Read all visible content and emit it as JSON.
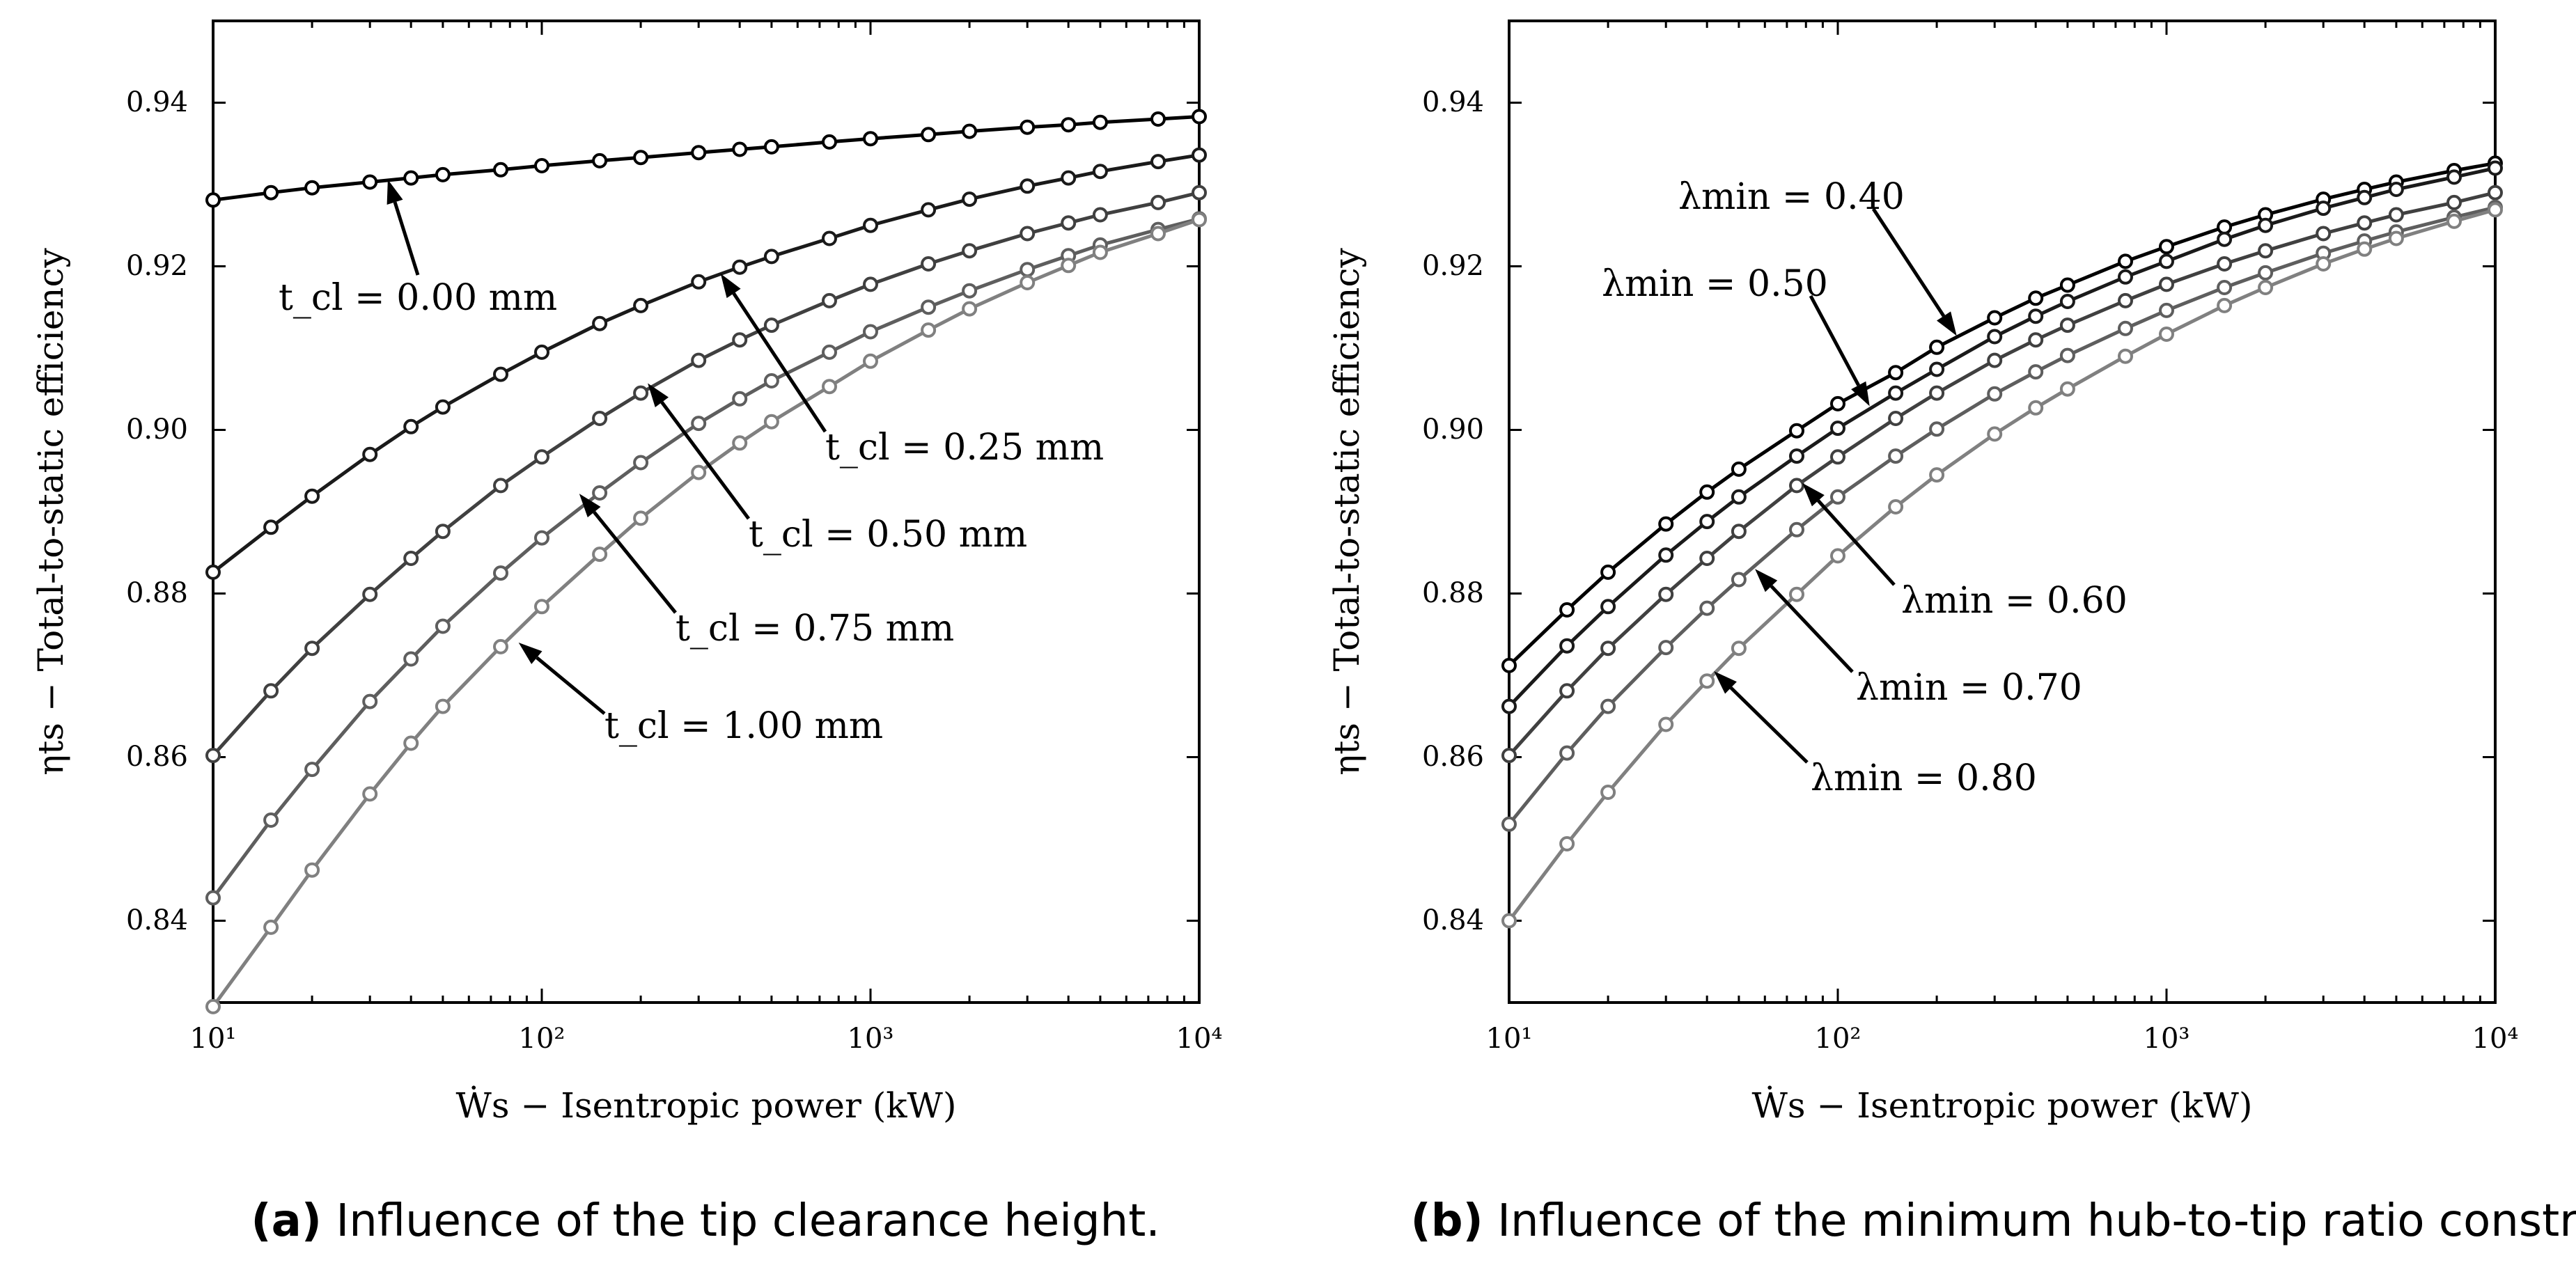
{
  "chart_data": [
    {
      "type": "line",
      "panel_label": "a",
      "caption": "Influence of the tip clearance height.",
      "xlabel": "Ẇs − Isentropic power (kW)",
      "ylabel": "ηts − Total-to-static efficiency",
      "xscale": "log",
      "xlim": [
        10,
        10000
      ],
      "ylim": [
        0.83,
        0.95
      ],
      "yticks": [
        0.84,
        0.86,
        0.88,
        0.9,
        0.92,
        0.94
      ],
      "ytick_labels": [
        "0.84",
        "0.86",
        "0.88",
        "0.90",
        "0.92",
        "0.94"
      ],
      "xtick_labels": [
        "10¹",
        "10²",
        "10³",
        "10⁴"
      ],
      "x": [
        10,
        15,
        20,
        30,
        40,
        50,
        75,
        100,
        150,
        200,
        300,
        400,
        500,
        750,
        1000,
        1500,
        2000,
        3000,
        4000,
        5000,
        7500,
        10000
      ],
      "series": [
        {
          "name": "t_cl = 0.00 mm",
          "color": "#000000",
          "values": [
            0.9281,
            0.929,
            0.9296,
            0.9303,
            0.9308,
            0.9312,
            0.9318,
            0.9323,
            0.9329,
            0.9333,
            0.9339,
            0.9343,
            0.9346,
            0.9352,
            0.9356,
            0.9361,
            0.9365,
            0.937,
            0.9373,
            0.9376,
            0.938,
            0.9383
          ]
        },
        {
          "name": "t_cl = 0.25 mm",
          "color": "#1a1a1a",
          "values": [
            0.8826,
            0.8881,
            0.8919,
            0.897,
            0.9004,
            0.9028,
            0.9068,
            0.9095,
            0.913,
            0.9152,
            0.9181,
            0.9199,
            0.9212,
            0.9234,
            0.925,
            0.9269,
            0.9282,
            0.9298,
            0.9308,
            0.9316,
            0.9328,
            0.9336
          ]
        },
        {
          "name": "t_cl = 0.50 mm",
          "color": "#404040",
          "values": [
            0.8602,
            0.8681,
            0.8733,
            0.8799,
            0.8843,
            0.8876,
            0.8932,
            0.8967,
            0.9014,
            0.9045,
            0.9085,
            0.911,
            0.9128,
            0.9158,
            0.9178,
            0.9203,
            0.9219,
            0.924,
            0.9253,
            0.9263,
            0.9278,
            0.929
          ]
        },
        {
          "name": "t_cl = 0.75 mm",
          "color": "#5e5e5e",
          "values": [
            0.8428,
            0.8523,
            0.8585,
            0.8668,
            0.872,
            0.876,
            0.8825,
            0.8868,
            0.8923,
            0.896,
            0.9008,
            0.9038,
            0.906,
            0.9095,
            0.912,
            0.915,
            0.917,
            0.9196,
            0.9213,
            0.9226,
            0.9245,
            0.9258
          ]
        },
        {
          "name": "t_cl = 1.00 mm",
          "color": "#808080",
          "values": [
            0.8295,
            0.8392,
            0.8462,
            0.8555,
            0.8617,
            0.8662,
            0.8735,
            0.8784,
            0.8848,
            0.8892,
            0.8948,
            0.8984,
            0.901,
            0.9053,
            0.9084,
            0.9122,
            0.9148,
            0.918,
            0.9201,
            0.9217,
            0.924,
            0.9257
          ]
        }
      ],
      "annotations": [
        {
          "text": "t_cl = 0.00 mm",
          "arrow_to": [
            34,
            0.9306
          ]
        },
        {
          "text": "t_cl = 0.25 mm",
          "arrow_to": [
            350,
            0.9191
          ]
        },
        {
          "text": "t_cl = 0.50 mm",
          "arrow_to": [
            210,
            0.9057
          ]
        },
        {
          "text": "t_cl = 0.75 mm",
          "arrow_to": [
            130,
            0.8922
          ]
        },
        {
          "text": "t_cl = 1.00 mm",
          "arrow_to": [
            85,
            0.874
          ]
        }
      ]
    },
    {
      "type": "line",
      "panel_label": "b",
      "caption": "Influence of the minimum hub-to-tip ratio constraint.",
      "xlabel": "Ẇs − Isentropic power (kW)",
      "ylabel": "ηts − Total-to-static efficiency",
      "xscale": "log",
      "xlim": [
        10,
        10000
      ],
      "ylim": [
        0.83,
        0.95
      ],
      "yticks": [
        0.84,
        0.86,
        0.88,
        0.9,
        0.92,
        0.94
      ],
      "ytick_labels": [
        "0.84",
        "0.86",
        "0.88",
        "0.90",
        "0.92",
        "0.94"
      ],
      "xtick_labels": [
        "10¹",
        "10²",
        "10³",
        "10⁴"
      ],
      "x": [
        10,
        15,
        20,
        30,
        40,
        50,
        75,
        100,
        150,
        200,
        300,
        400,
        500,
        750,
        1000,
        1500,
        2000,
        3000,
        4000,
        5000,
        7500,
        10000
      ],
      "series": [
        {
          "name": "λmin = 0.40",
          "color": "#000000",
          "values": [
            0.8712,
            0.878,
            0.8826,
            0.8885,
            0.8924,
            0.8952,
            0.8999,
            0.9032,
            0.907,
            0.9101,
            0.9137,
            0.9161,
            0.9177,
            0.9206,
            0.9224,
            0.9248,
            0.9263,
            0.9282,
            0.9294,
            0.9303,
            0.9317,
            0.9326
          ]
        },
        {
          "name": "λmin = 0.50",
          "color": "#1a1a1a",
          "values": [
            0.8662,
            0.8736,
            0.8784,
            0.8847,
            0.8888,
            0.8918,
            0.8968,
            0.9002,
            0.9045,
            0.9074,
            0.9114,
            0.9139,
            0.9157,
            0.9187,
            0.9206,
            0.9233,
            0.925,
            0.9271,
            0.9284,
            0.9294,
            0.9309,
            0.932
          ]
        },
        {
          "name": "λmin = 0.60",
          "color": "#404040",
          "values": [
            0.8602,
            0.8681,
            0.8733,
            0.8799,
            0.8843,
            0.8876,
            0.8932,
            0.8967,
            0.9014,
            0.9045,
            0.9085,
            0.911,
            0.9128,
            0.9158,
            0.9178,
            0.9203,
            0.9219,
            0.924,
            0.9253,
            0.9263,
            0.9278,
            0.929
          ]
        },
        {
          "name": "λmin = 0.70",
          "color": "#5e5e5e",
          "values": [
            0.8518,
            0.8605,
            0.8662,
            0.8734,
            0.8782,
            0.8817,
            0.8878,
            0.8918,
            0.8968,
            0.9001,
            0.9044,
            0.9071,
            0.9091,
            0.9124,
            0.9146,
            0.9174,
            0.9192,
            0.9216,
            0.9231,
            0.9242,
            0.926,
            0.9272
          ]
        },
        {
          "name": "λmin = 0.80",
          "color": "#808080",
          "values": [
            0.84,
            0.8494,
            0.8557,
            0.864,
            0.8693,
            0.8733,
            0.8799,
            0.8846,
            0.8906,
            0.8945,
            0.8995,
            0.9027,
            0.905,
            0.909,
            0.9117,
            0.9152,
            0.9174,
            0.9203,
            0.9221,
            0.9234,
            0.9255,
            0.9269
          ]
        }
      ],
      "annotations": [
        {
          "text": "λmin = 0.40",
          "arrow_to": [
            230,
            0.9115
          ]
        },
        {
          "text": "λmin = 0.50",
          "arrow_to": [
            125,
            0.9029
          ]
        },
        {
          "text": "λmin = 0.60",
          "arrow_to": [
            78,
            0.8935
          ]
        },
        {
          "text": "λmin = 0.70",
          "arrow_to": [
            56,
            0.883
          ]
        },
        {
          "text": "λmin = 0.80",
          "arrow_to": [
            42,
            0.8705
          ]
        }
      ]
    }
  ]
}
